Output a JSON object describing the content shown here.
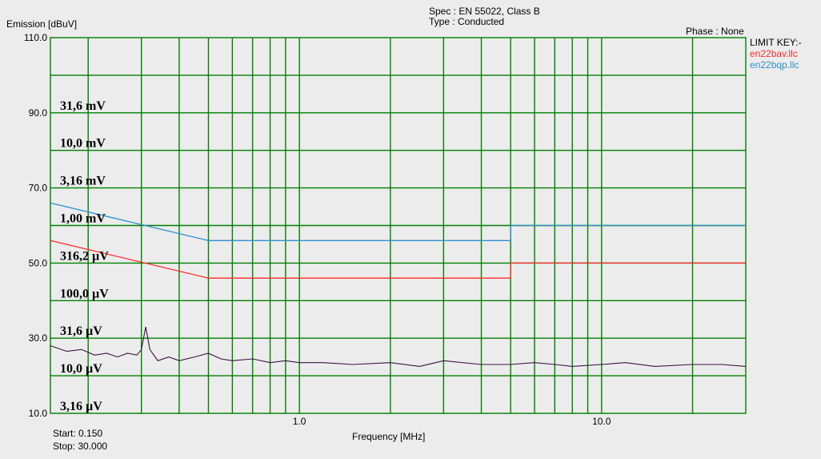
{
  "header": {
    "ylabel": "Emission [dBuV]",
    "spec": "Spec : EN 55022, Class B",
    "type": "Type : Conducted",
    "phase": "Phase : None"
  },
  "legend": {
    "title": "LIMIT KEY:-",
    "items": [
      {
        "label": "en22bav.llc",
        "color": "#ff2a2a"
      },
      {
        "label": "en22bqp.llc",
        "color": "#2a8fcf"
      }
    ]
  },
  "footer": {
    "start": "Start: 0.150",
    "stop": "Stop: 30.000",
    "xlabel": "Frequency [MHz]"
  },
  "colors": {
    "background": "#ececec",
    "grid": "#008000",
    "trace": "#3b1440"
  },
  "chart_data": {
    "type": "line",
    "xlabel": "Frequency [MHz]",
    "ylabel": "Emission [dBuV]",
    "x_scale": "log",
    "xlim": [
      0.15,
      30
    ],
    "ylim": [
      10,
      110
    ],
    "x_tick_labels": [
      "1.0",
      "10.0"
    ],
    "y_tick_labels": [
      "10.0",
      "30.0",
      "50.0",
      "70.0",
      "90.0",
      "110.0"
    ],
    "grid": true,
    "legend_position": "right",
    "annotations": [
      {
        "text": "31,6 mV",
        "y": 90
      },
      {
        "text": "10,0 mV",
        "y": 80
      },
      {
        "text": "3,16 mV",
        "y": 70
      },
      {
        "text": "1,00 mV",
        "y": 60
      },
      {
        "text": "316,2 µV",
        "y": 50
      },
      {
        "text": "100,0 µV",
        "y": 40
      },
      {
        "text": "31,6 µV",
        "y": 30
      },
      {
        "text": "10,0 µV",
        "y": 20
      },
      {
        "text": "3,16 µV",
        "y": 10
      }
    ],
    "series": [
      {
        "name": "en22bqp.llc",
        "color": "#2a8fcf",
        "points": [
          [
            0.15,
            66
          ],
          [
            0.5,
            56
          ],
          [
            5,
            56
          ],
          [
            5,
            60
          ],
          [
            30,
            60
          ]
        ]
      },
      {
        "name": "en22bav.llc",
        "color": "#ff2a2a",
        "points": [
          [
            0.15,
            56
          ],
          [
            0.5,
            46
          ],
          [
            5,
            46
          ],
          [
            5,
            50
          ],
          [
            30,
            50
          ]
        ]
      },
      {
        "color": "#3b1440",
        "points": [
          [
            0.15,
            28
          ],
          [
            0.17,
            26.5
          ],
          [
            0.19,
            27
          ],
          [
            0.21,
            25.5
          ],
          [
            0.23,
            26
          ],
          [
            0.25,
            25
          ],
          [
            0.27,
            26
          ],
          [
            0.29,
            25.5
          ],
          [
            0.3,
            27
          ],
          [
            0.31,
            33
          ],
          [
            0.32,
            27
          ],
          [
            0.34,
            24
          ],
          [
            0.37,
            25
          ],
          [
            0.4,
            24
          ],
          [
            0.45,
            25
          ],
          [
            0.5,
            26
          ],
          [
            0.55,
            24.5
          ],
          [
            0.6,
            24
          ],
          [
            0.7,
            24.5
          ],
          [
            0.8,
            23.5
          ],
          [
            0.9,
            24
          ],
          [
            1.0,
            23.5
          ],
          [
            1.2,
            23.5
          ],
          [
            1.5,
            23
          ],
          [
            2.0,
            23.5
          ],
          [
            2.5,
            22.5
          ],
          [
            3.0,
            24
          ],
          [
            4.0,
            23
          ],
          [
            5.0,
            23
          ],
          [
            6.0,
            23.5
          ],
          [
            7.0,
            23
          ],
          [
            8.0,
            22.5
          ],
          [
            10.0,
            23
          ],
          [
            12.0,
            23.5
          ],
          [
            15.0,
            22.5
          ],
          [
            20.0,
            23
          ],
          [
            25.0,
            23
          ],
          [
            30.0,
            22.5
          ]
        ]
      }
    ]
  }
}
